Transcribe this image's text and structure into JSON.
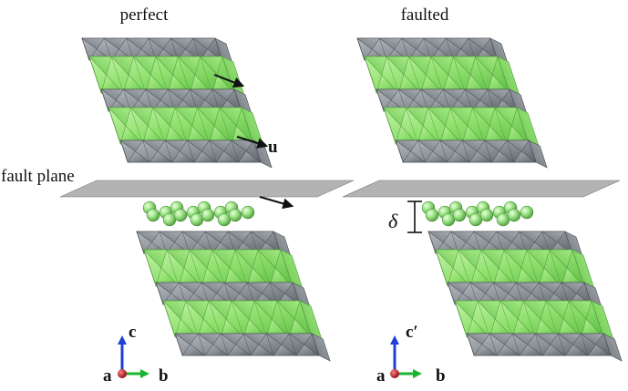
{
  "panels": {
    "left": {
      "title": "perfect"
    },
    "right": {
      "title": "faulted"
    }
  },
  "annotations": {
    "fault_plane": "fault plane",
    "displacement_vector": "u",
    "gap_symbol": "δ"
  },
  "axes": {
    "left": {
      "a": "a",
      "b": "b",
      "c": "c"
    },
    "right": {
      "a": "a",
      "b": "b",
      "c": "c′"
    }
  },
  "colors": {
    "octahedra_gray": "#8b9197",
    "octahedra_green": "#7fd86b",
    "sphere_green": "#9fe08a",
    "fault_plane": "#8f8f8f",
    "axis_a": "#c0141c",
    "axis_b": "#19b52f",
    "axis_c": "#1f3fd6"
  }
}
